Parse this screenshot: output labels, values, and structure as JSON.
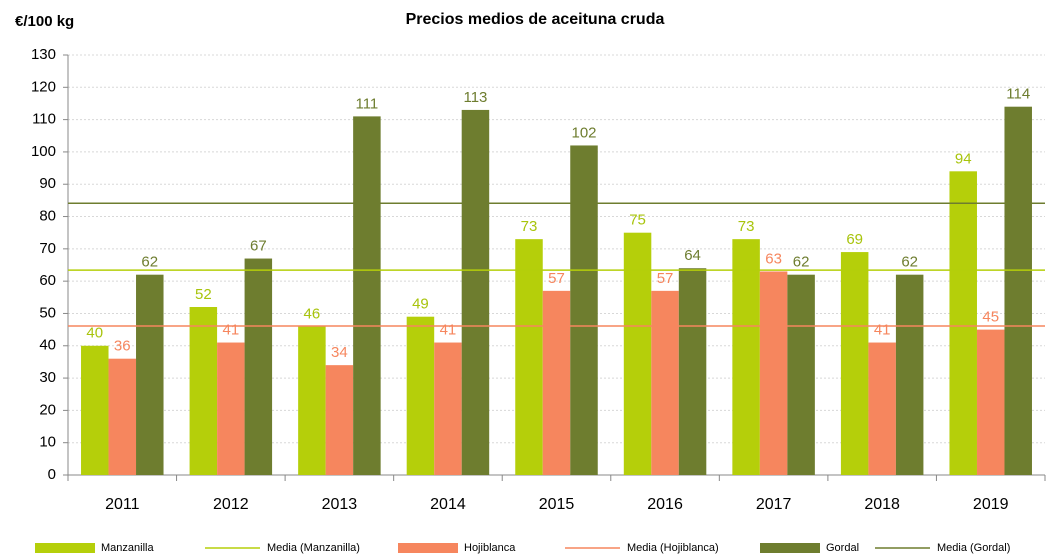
{
  "chart_data": {
    "type": "bar",
    "title": "Precios medios de aceituna cruda",
    "y_axis_label": "€/100 kg",
    "categories": [
      "2011",
      "2012",
      "2013",
      "2014",
      "2015",
      "2016",
      "2017",
      "2018",
      "2019"
    ],
    "series": [
      {
        "name": "Manzanilla",
        "color": "#b5cf0a",
        "label_color": "#a8c40c",
        "values": [
          40,
          52,
          46,
          49,
          73,
          75,
          73,
          69,
          94
        ]
      },
      {
        "name": "Hojiblanca",
        "color": "#f6865e",
        "label_color": "#f6865e",
        "values": [
          36,
          41,
          34,
          41,
          57,
          57,
          63,
          41,
          45
        ]
      },
      {
        "name": "Gordal",
        "color": "#6e7d2f",
        "label_color": "#6e7d2f",
        "values": [
          62,
          67,
          111,
          113,
          102,
          64,
          62,
          62,
          114
        ]
      }
    ],
    "reference_lines": [
      {
        "name": "Media (Manzanilla)",
        "color": "#b5cf0a",
        "value": 63.4
      },
      {
        "name": "Media (Hojiblanca)",
        "color": "#f6865e",
        "value": 46.1
      },
      {
        "name": "Media (Gordal)",
        "color": "#6e7d2f",
        "value": 84.1
      }
    ],
    "ylim": [
      0,
      130
    ],
    "yticks": [
      0,
      10,
      20,
      30,
      40,
      50,
      60,
      70,
      80,
      90,
      100,
      110,
      120,
      130
    ],
    "grid": true
  }
}
